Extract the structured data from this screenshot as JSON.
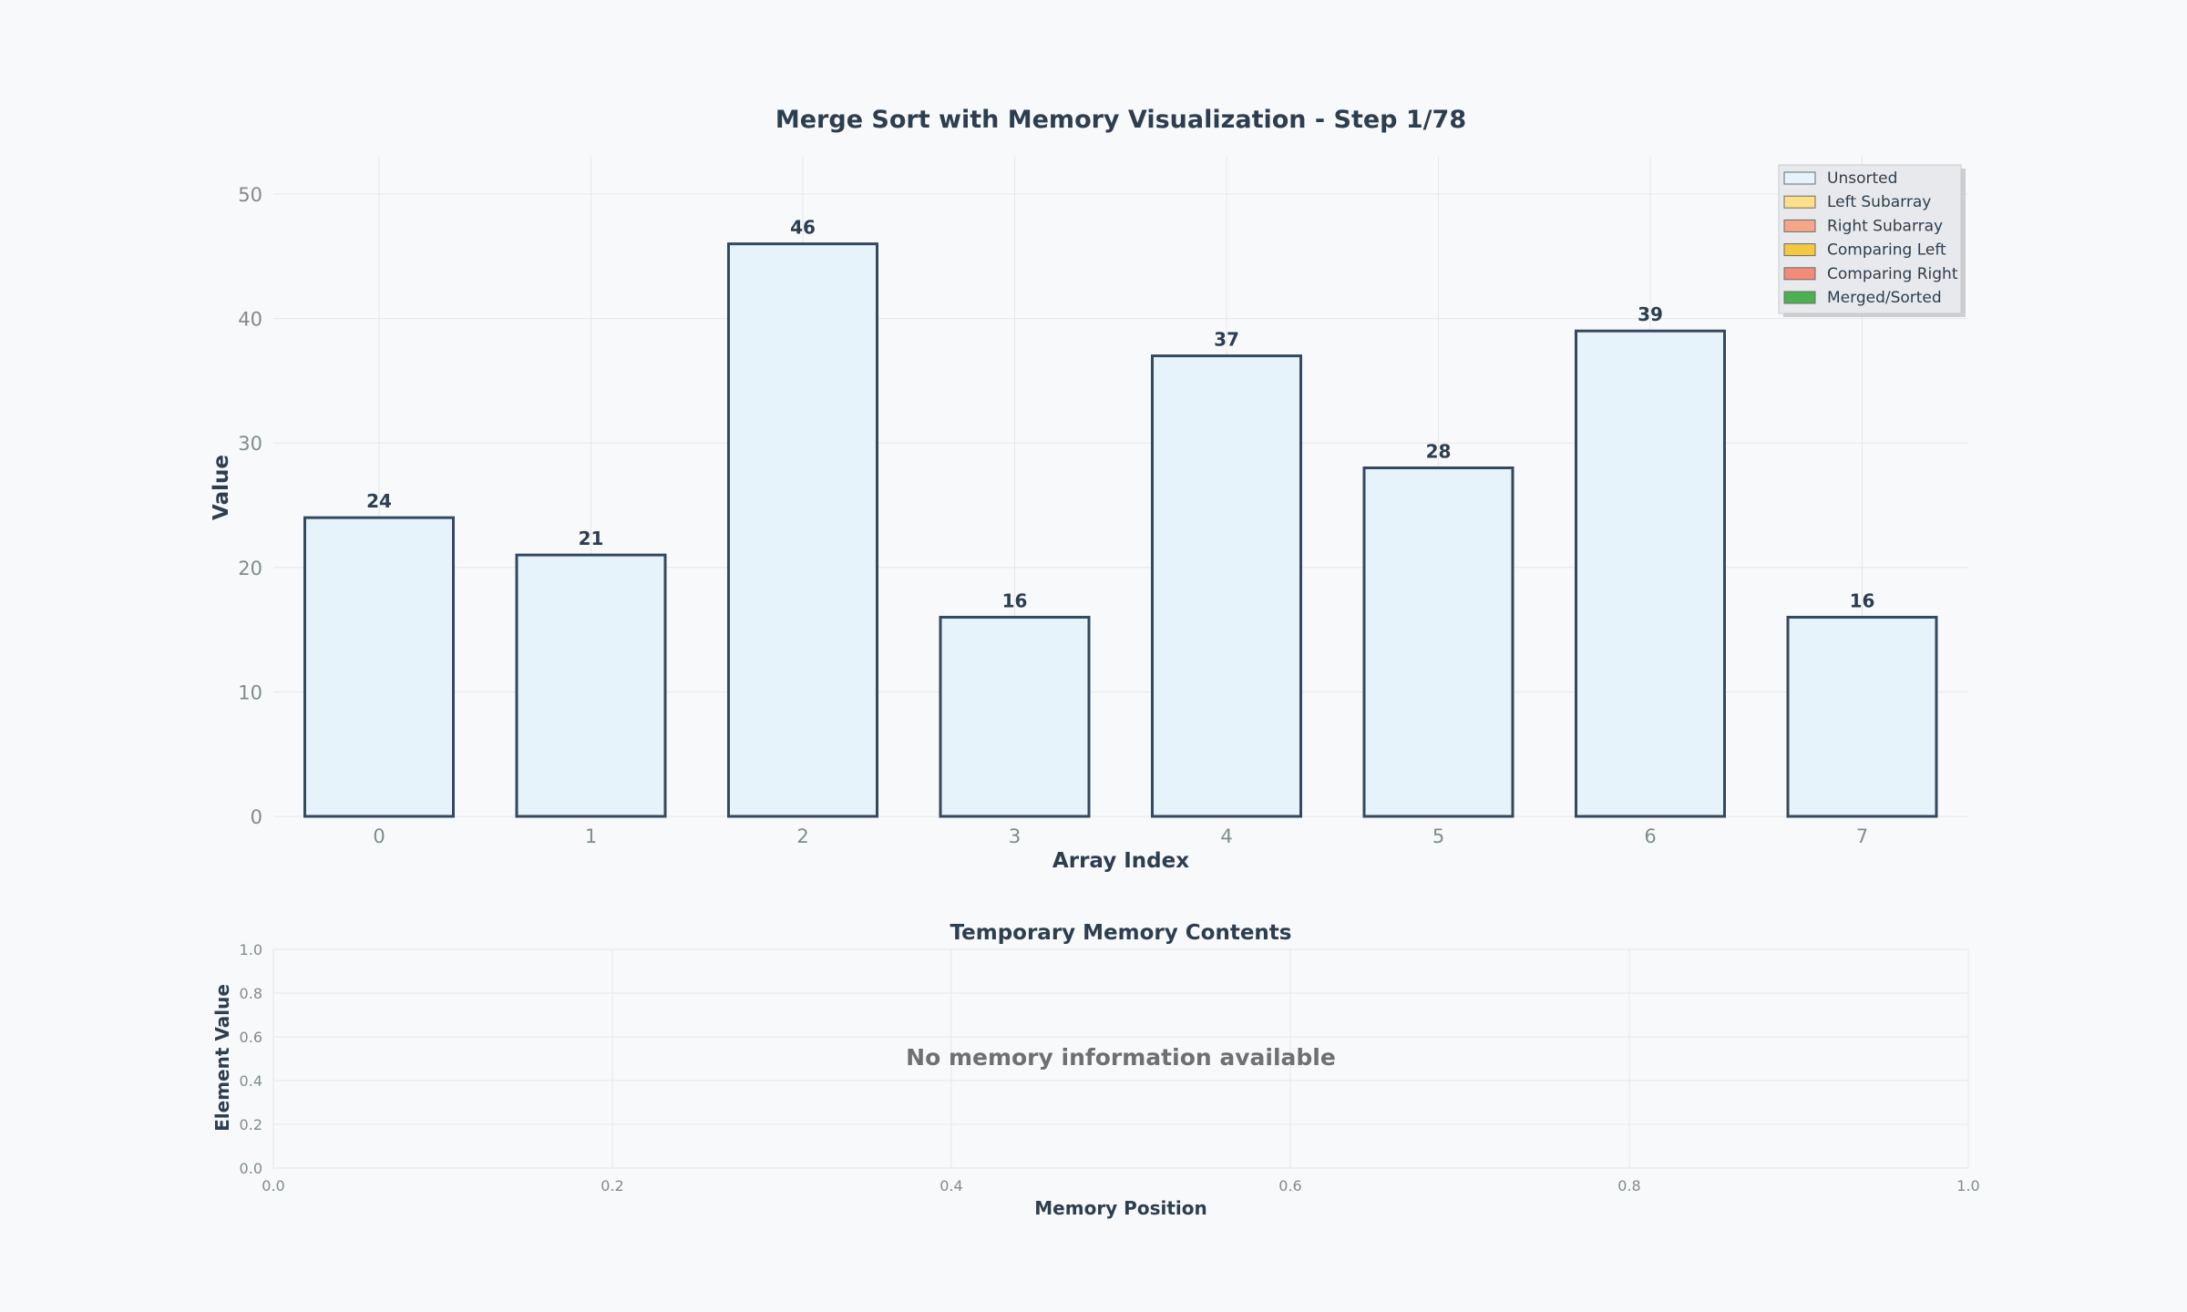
{
  "chart_data": [
    {
      "type": "bar",
      "title": "Merge Sort with Memory Visualization - Step 1/78",
      "xlabel": "Array Index",
      "ylabel": "Value",
      "categories": [
        "0",
        "1",
        "2",
        "3",
        "4",
        "5",
        "6",
        "7"
      ],
      "values": [
        24,
        21,
        46,
        16,
        37,
        28,
        39,
        16
      ],
      "ylim": [
        0,
        53
      ],
      "yticks": [
        "0",
        "10",
        "20",
        "30",
        "40",
        "50"
      ],
      "grid": true,
      "bar_color": "#e6f3fb",
      "edge_color": "#34495e",
      "legend_placement": "top-right",
      "legend": [
        {
          "label": "Unsorted",
          "color": "#e6f3fb"
        },
        {
          "label": "Left Subarray",
          "color": "#ffe08a"
        },
        {
          "label": "Right Subarray",
          "color": "#f4a58a"
        },
        {
          "label": "Comparing Left",
          "color": "#f5c842"
        },
        {
          "label": "Comparing Right",
          "color": "#f28b7a"
        },
        {
          "label": "Merged/Sorted",
          "color": "#4caf50"
        }
      ]
    },
    {
      "type": "bar",
      "title": "Temporary Memory Contents",
      "xlabel": "Memory Position",
      "ylabel": "Element Value",
      "xlim": [
        0,
        1
      ],
      "ylim": [
        0,
        1
      ],
      "xticks": [
        "0.0",
        "0.2",
        "0.4",
        "0.6",
        "0.8",
        "1.0"
      ],
      "yticks": [
        "0.0",
        "0.2",
        "0.4",
        "0.6",
        "0.8",
        "1.0"
      ],
      "grid": true,
      "values": [],
      "message": "No memory information available"
    }
  ]
}
